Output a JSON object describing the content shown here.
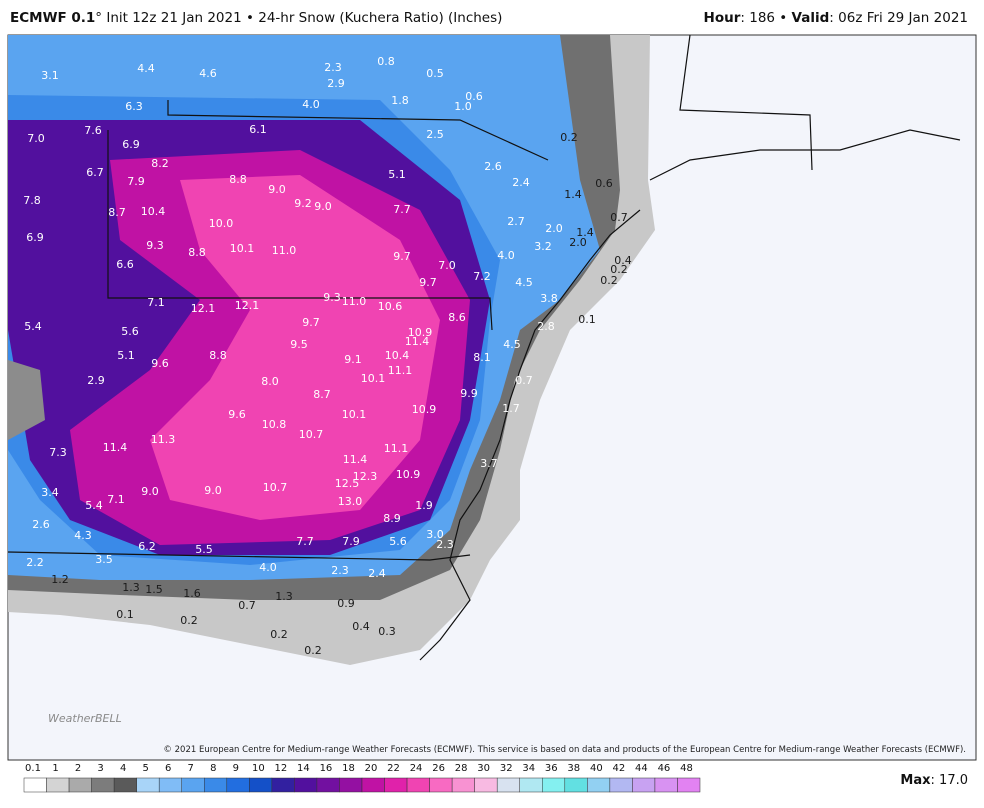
{
  "header": {
    "model": "ECMWF 0.1",
    "title": "° Init 12z 21 Jan 2021 • 24-hr Snow (Kuchera Ratio) (Inches)",
    "hour_label": "Hour",
    "hour": ": 186 • ",
    "valid_label": "Valid",
    "valid": ": 06z Fri 29 Jan 2021"
  },
  "map": {
    "labels": [
      "3.1",
      "4.4",
      "4.6",
      "2.3",
      "0.8",
      "0.5",
      "2.9",
      "1.8",
      "0.6",
      "1.0",
      "6.3",
      "4.0",
      "7.0",
      "7.6",
      "6.1",
      "2.5",
      "0.2",
      "6.9",
      "8.2",
      "6.7",
      "2.6",
      "5.1",
      "7.9",
      "8.8",
      "9.0",
      "2.4",
      "0.6",
      "1.4",
      "7.8",
      "9.2",
      "9.0",
      "7.7",
      "8.7",
      "10.4",
      "0.7",
      "2.7",
      "10.0",
      "2.0",
      "1.4",
      "6.9",
      "9.3",
      "10.1",
      "11.0",
      "2.0",
      "3.2",
      "8.8",
      "4.0",
      "0.4",
      "9.7",
      "7.0",
      "6.6",
      "7.2",
      "0.2",
      "9.7",
      "4.5",
      "0.2",
      "3.8",
      "7.1",
      "12.1",
      "12.1",
      "9.3",
      "11.0",
      "10.6",
      "8.6",
      "2.8",
      "0.1",
      "5.4",
      "5.6",
      "9.7",
      "10.9",
      "11.4",
      "9.5",
      "4.5",
      "5.1",
      "8.8",
      "9.1",
      "10.4",
      "8.1",
      "9.6",
      "11.1",
      "10.1",
      "2.9",
      "8.0",
      "0.7",
      "8.7",
      "9.9",
      "9.6",
      "10.1",
      "10.9",
      "1.7",
      "10.8",
      "10.7",
      "11.3",
      "11.4",
      "11.1",
      "7.3",
      "11.4",
      "3.7",
      "12.3",
      "10.9",
      "12.5",
      "3.4",
      "9.0",
      "9.0",
      "10.7",
      "5.4",
      "7.1",
      "13.0",
      "1.9",
      "8.9",
      "2.6",
      "4.3",
      "3.0",
      "2.3",
      "6.2",
      "5.5",
      "7.7",
      "7.9",
      "5.6",
      "2.2",
      "3.5",
      "4.0",
      "2.3",
      "2.4",
      "1.2",
      "1.3",
      "1.5",
      "1.6",
      "1.3",
      "0.7",
      "0.9",
      "0.1",
      "0.2",
      "0.4",
      "0.3",
      "0.2",
      "0.2"
    ]
  },
  "colorbar": {
    "ticks": [
      "0.1",
      "1",
      "2",
      "3",
      "4",
      "5",
      "6",
      "7",
      "8",
      "9",
      "10",
      "12",
      "14",
      "16",
      "18",
      "20",
      "22",
      "24",
      "26",
      "28",
      "30",
      "32",
      "34",
      "36",
      "38",
      "40",
      "42",
      "44",
      "46",
      "48"
    ],
    "colors": [
      "#ffffff",
      "#d4d4d4",
      "#aaaaaa",
      "#7c7c7c",
      "#5a5a5a",
      "#a8d4f8",
      "#80bcf6",
      "#5aa4f0",
      "#3a8ae8",
      "#226ee0",
      "#1450c8",
      "#3220a0",
      "#52109e",
      "#7210a0",
      "#9410a2",
      "#c012a4",
      "#e022aa",
      "#f044b2",
      "#f86ac2",
      "#f892d2",
      "#f8bae2",
      "#d8e2f0",
      "#b0e8f2",
      "#84f0f0",
      "#62e0e2",
      "#92d0f2",
      "#b2b8f2",
      "#c8a2f2",
      "#d892f2",
      "#e282f2"
    ]
  },
  "footer": {
    "copyright": "© 2021 European Centre for Medium-range Weather Forecasts (ECMWF). This service is based on data and products of the European Centre for Medium-range Weather Forecasts (ECMWF).",
    "max_label": "Max",
    "max": ": 17.0"
  },
  "logo": "WeatherBELL"
}
